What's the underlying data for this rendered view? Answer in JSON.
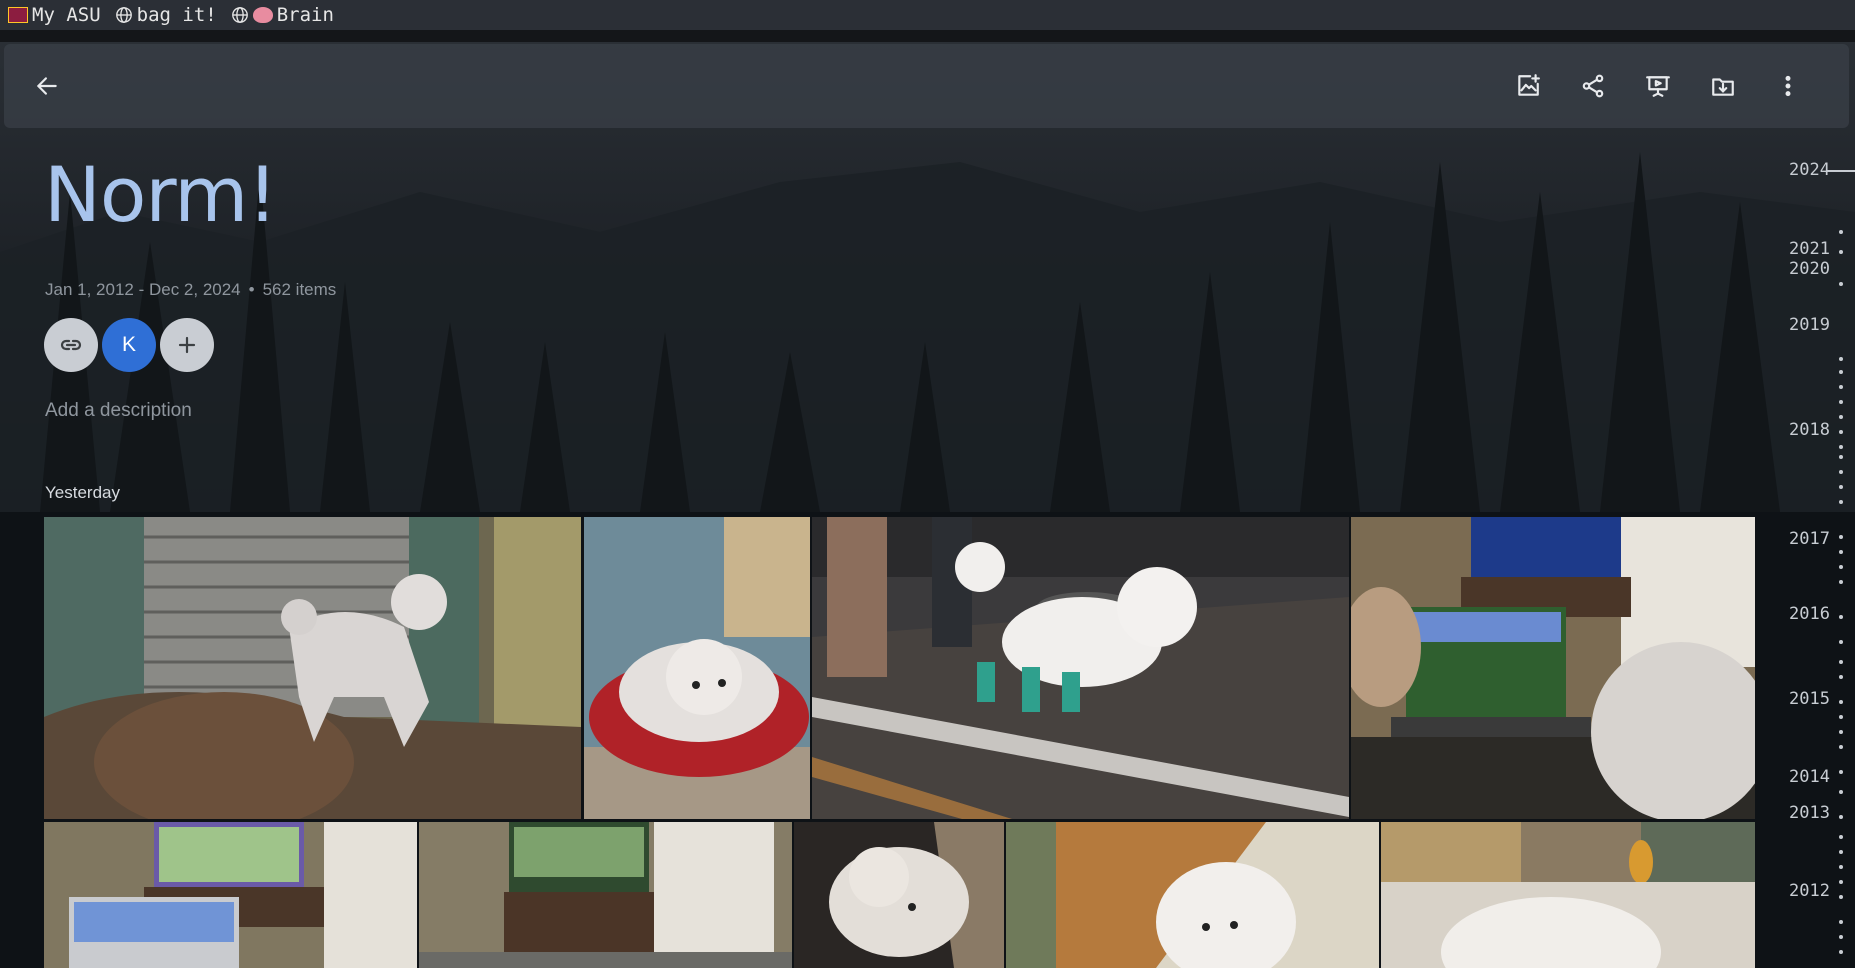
{
  "bookmarks": [
    {
      "label": "My ASU",
      "icon": "asu-icon"
    },
    {
      "label": "bag it!",
      "icon": "globe-icon"
    },
    {
      "label": "Brain",
      "icon": "brain-icon"
    }
  ],
  "toolbar": {
    "back": "back-arrow-icon",
    "actions": [
      "add-photos-icon",
      "share-icon",
      "slideshow-icon",
      "download-icon",
      "more-vert-icon"
    ]
  },
  "album": {
    "title": "Norm!",
    "date_range": "Jan 1, 2012 - Dec 2, 2024",
    "separator": "•",
    "item_count": "562 items",
    "avatar_initial": "K",
    "description_placeholder": "Add a description"
  },
  "sections": [
    {
      "label": "Yesterday"
    }
  ],
  "photos": [
    {
      "subject": "white dog standing on brown couch"
    },
    {
      "subject": "dog resting in red bed"
    },
    {
      "subject": "dog with green booties in parking lot"
    },
    {
      "subject": "dog beside laptop showing football game"
    },
    {
      "subject": "laptop and tv showing football"
    },
    {
      "subject": "tv stand in living room"
    },
    {
      "subject": "dog lying on floor"
    },
    {
      "subject": "dog on hardwood floor"
    },
    {
      "subject": "dog near guitar"
    }
  ],
  "timeline_years": [
    "2024",
    "2021",
    "2020",
    "2019",
    "2018",
    "2017",
    "2016",
    "2015",
    "2014",
    "2013",
    "2012"
  ],
  "colors": {
    "title": "#a8c4ec",
    "avatar": "#2f6fd6",
    "bookmark_bar": "#2b2f36"
  }
}
